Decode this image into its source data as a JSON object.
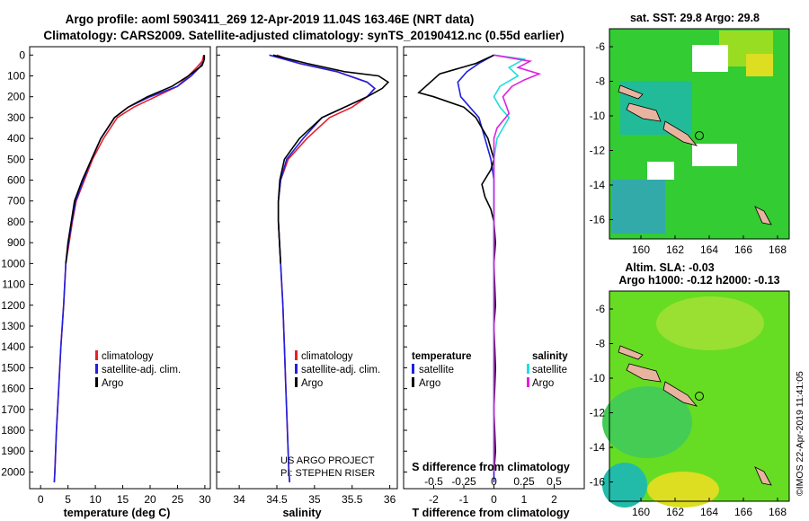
{
  "header": {
    "line1": "Argo profile: aoml 5903411_269 12-Apr-2019 11.04S 163.46E (NRT data)",
    "line2": "Climatology: CARS2009. Satellite-adjusted climatology: synTS_20190412.nc (0.55d earlier)"
  },
  "depth_ticks": [
    "0",
    "100",
    "200",
    "300",
    "400",
    "500",
    "600",
    "700",
    "800",
    "900",
    "1000",
    "1100",
    "1200",
    "1300",
    "1400",
    "1500",
    "1600",
    "1700",
    "1800",
    "1900",
    "2000"
  ],
  "legend_temp_sal": {
    "climatology": "climatology",
    "satellite": "satellite-adj. clim.",
    "argo": "Argo"
  },
  "legend_diff": {
    "temperature": "temperature",
    "salinity": "salinity",
    "satellite": "satellite",
    "argo": "Argo"
  },
  "credits": {
    "project": "US ARGO PROJECT",
    "pi": "PI: STEPHEN RISER"
  },
  "map_top": {
    "title": "sat. SST: 29.8 Argo: 29.8"
  },
  "map_bottom": {
    "title1": "Altim. SLA: -0.03",
    "title2": "Argo h1000: -0.12 h2000: -0.13"
  },
  "watermark": "©IMOS 22-Apr-2019 11:41:05",
  "colors": {
    "climatology": "#e8202a",
    "satellite": "#2020e0",
    "argo": "#000000",
    "sal_satellite": "#22dddd",
    "sal_argo": "#e020e0",
    "sst_ocean": "#33cc33",
    "sla_ocean": "#66dd22",
    "land": "#e8b4a0"
  },
  "chart_data": [
    {
      "type": "line",
      "title": "",
      "xlabel": "temperature (deg C)",
      "ylabel": "",
      "xlim": [
        -2,
        31
      ],
      "ylim": [
        2080,
        -40
      ],
      "x_ticks": [
        "0",
        "5",
        "10",
        "15",
        "20",
        "25",
        "30"
      ],
      "y_inverted": true,
      "series": [
        {
          "name": "climatology",
          "points": [
            [
              29.8,
              0
            ],
            [
              29.5,
              30
            ],
            [
              28.5,
              60
            ],
            [
              27.0,
              100
            ],
            [
              25.0,
              150
            ],
            [
              21.0,
              200
            ],
            [
              17.0,
              250
            ],
            [
              14.0,
              300
            ],
            [
              11.5,
              400
            ],
            [
              9.5,
              500
            ],
            [
              8.0,
              600
            ],
            [
              6.5,
              700
            ],
            [
              5.8,
              800
            ],
            [
              5.2,
              900
            ],
            [
              4.6,
              1000
            ],
            [
              4.2,
              1200
            ],
            [
              3.7,
              1400
            ],
            [
              3.3,
              1600
            ],
            [
              2.9,
              1800
            ],
            [
              2.6,
              2000
            ],
            [
              2.5,
              2050
            ]
          ]
        },
        {
          "name": "satellite-adj. clim.",
          "points": [
            [
              29.8,
              0
            ],
            [
              29.8,
              30
            ],
            [
              29.0,
              60
            ],
            [
              27.5,
              100
            ],
            [
              25.0,
              150
            ],
            [
              20.0,
              200
            ],
            [
              16.0,
              250
            ],
            [
              13.5,
              300
            ],
            [
              11.0,
              400
            ],
            [
              9.3,
              500
            ],
            [
              7.8,
              600
            ],
            [
              6.4,
              700
            ],
            [
              5.7,
              800
            ],
            [
              5.1,
              900
            ],
            [
              4.6,
              1000
            ],
            [
              4.2,
              1200
            ],
            [
              3.7,
              1400
            ],
            [
              3.3,
              1600
            ],
            [
              2.9,
              1800
            ],
            [
              2.6,
              2000
            ],
            [
              2.5,
              2050
            ]
          ]
        },
        {
          "name": "Argo",
          "points": [
            [
              29.9,
              0
            ],
            [
              29.9,
              20
            ],
            [
              29.5,
              50
            ],
            [
              27.0,
              100
            ],
            [
              24.0,
              150
            ],
            [
              19.5,
              200
            ],
            [
              16.0,
              250
            ],
            [
              13.5,
              300
            ],
            [
              11.0,
              400
            ],
            [
              9.3,
              500
            ],
            [
              7.6,
              600
            ],
            [
              6.2,
              700
            ],
            [
              5.6,
              800
            ],
            [
              5.0,
              900
            ],
            [
              4.6,
              1000
            ]
          ]
        }
      ]
    },
    {
      "type": "line",
      "title": "",
      "xlabel": "salinity",
      "ylabel": "",
      "xlim": [
        33.7,
        36.1
      ],
      "ylim": [
        2080,
        -40
      ],
      "x_ticks": [
        "34",
        "34.5",
        "35",
        "35.5",
        "36"
      ],
      "y_inverted": true,
      "series": [
        {
          "name": "climatology",
          "points": [
            [
              34.5,
              0
            ],
            [
              34.8,
              40
            ],
            [
              35.3,
              80
            ],
            [
              35.7,
              130
            ],
            [
              35.8,
              160
            ],
            [
              35.7,
              200
            ],
            [
              35.5,
              250
            ],
            [
              35.2,
              300
            ],
            [
              34.9,
              400
            ],
            [
              34.65,
              500
            ],
            [
              34.55,
              600
            ],
            [
              34.52,
              700
            ],
            [
              34.52,
              800
            ],
            [
              34.55,
              1000
            ],
            [
              34.58,
              1200
            ],
            [
              34.6,
              1400
            ],
            [
              34.62,
              1600
            ],
            [
              34.64,
              1800
            ],
            [
              34.66,
              2000
            ],
            [
              34.67,
              2050
            ]
          ]
        },
        {
          "name": "satellite-adj. clim.",
          "points": [
            [
              34.4,
              0
            ],
            [
              34.8,
              40
            ],
            [
              35.3,
              80
            ],
            [
              35.7,
              130
            ],
            [
              35.8,
              160
            ],
            [
              35.7,
              200
            ],
            [
              35.4,
              250
            ],
            [
              35.1,
              300
            ],
            [
              34.85,
              400
            ],
            [
              34.63,
              500
            ],
            [
              34.55,
              600
            ],
            [
              34.52,
              700
            ],
            [
              34.52,
              800
            ],
            [
              34.55,
              1000
            ],
            [
              34.58,
              1200
            ],
            [
              34.6,
              1400
            ],
            [
              34.62,
              1600
            ],
            [
              34.64,
              1800
            ],
            [
              34.66,
              2000
            ],
            [
              34.67,
              2050
            ]
          ]
        },
        {
          "name": "Argo",
          "points": [
            [
              34.45,
              0
            ],
            [
              34.9,
              40
            ],
            [
              35.4,
              80
            ],
            [
              35.85,
              100
            ],
            [
              35.98,
              130
            ],
            [
              35.9,
              160
            ],
            [
              35.7,
              200
            ],
            [
              35.4,
              250
            ],
            [
              35.1,
              300
            ],
            [
              34.8,
              400
            ],
            [
              34.6,
              500
            ],
            [
              34.54,
              600
            ],
            [
              34.52,
              700
            ],
            [
              34.52,
              800
            ],
            [
              34.55,
              1000
            ]
          ]
        }
      ]
    },
    {
      "type": "line",
      "title": "",
      "xlabel": "T difference from climatology",
      "xlabel2": "S difference from climatology",
      "ylabel": "",
      "xlim": [
        -3.0,
        3.0
      ],
      "ylim": [
        2080,
        -40
      ],
      "x_ticks": [
        "-2",
        "-1",
        "0",
        "1",
        "2"
      ],
      "x_ticks_top": [
        "-0.5",
        "-0.25",
        "0",
        "0.25",
        "0.5"
      ],
      "y_inverted": true,
      "series": [
        {
          "name": "temperature satellite",
          "points": [
            [
              0,
              0
            ],
            [
              -0.5,
              40
            ],
            [
              -0.9,
              80
            ],
            [
              -1.2,
              130
            ],
            [
              -1.1,
              200
            ],
            [
              -0.8,
              250
            ],
            [
              -0.5,
              300
            ],
            [
              -0.3,
              400
            ],
            [
              -0.1,
              500
            ],
            [
              0,
              600
            ],
            [
              0,
              700
            ],
            [
              0,
              800
            ],
            [
              0,
              1000
            ],
            [
              0,
              1500
            ],
            [
              0,
              2000
            ],
            [
              0,
              2050
            ]
          ]
        },
        {
          "name": "temperature Argo",
          "points": [
            [
              0,
              0
            ],
            [
              -0.6,
              40
            ],
            [
              -1.8,
              90
            ],
            [
              -2.5,
              180
            ],
            [
              -2.0,
              200
            ],
            [
              -1.0,
              250
            ],
            [
              -0.6,
              300
            ],
            [
              -0.2,
              400
            ],
            [
              0,
              500
            ],
            [
              -0.1,
              550
            ],
            [
              -0.4,
              620
            ],
            [
              -0.3,
              680
            ],
            [
              -0.1,
              740
            ],
            [
              0,
              800
            ],
            [
              0.05,
              900
            ],
            [
              0,
              1000
            ],
            [
              0.05,
              1200
            ],
            [
              0,
              1300
            ],
            [
              0.05,
              1500
            ],
            [
              0,
              1700
            ],
            [
              0.05,
              1900
            ],
            [
              0,
              2000
            ]
          ]
        },
        {
          "name": "salinity satellite",
          "points": [
            [
              0,
              0
            ],
            [
              1.0,
              20
            ],
            [
              0.5,
              60
            ],
            [
              0.8,
              100
            ],
            [
              0.2,
              150
            ],
            [
              0,
              200
            ],
            [
              0.2,
              250
            ],
            [
              0.5,
              300
            ],
            [
              0.1,
              400
            ],
            [
              0,
              500
            ],
            [
              0,
              700
            ],
            [
              0,
              1000
            ],
            [
              0,
              1500
            ],
            [
              0,
              2000
            ]
          ]
        },
        {
          "name": "salinity Argo",
          "points": [
            [
              0,
              0
            ],
            [
              1.2,
              30
            ],
            [
              0.8,
              60
            ],
            [
              1.5,
              90
            ],
            [
              1.0,
              120
            ],
            [
              0.6,
              150
            ],
            [
              0.3,
              200
            ],
            [
              0.5,
              280
            ],
            [
              0.1,
              350
            ],
            [
              0,
              400
            ],
            [
              0,
              1400
            ],
            [
              0,
              1500
            ],
            [
              0,
              2000
            ]
          ]
        }
      ]
    }
  ]
}
